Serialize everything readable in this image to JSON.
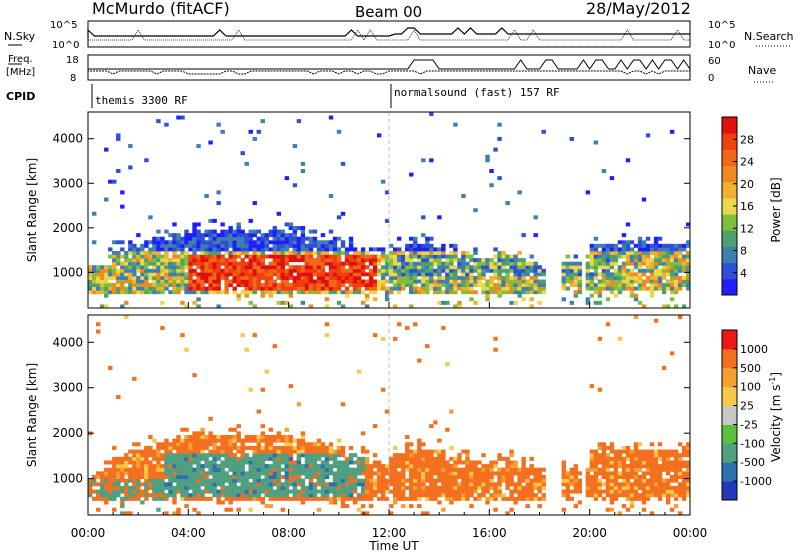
{
  "header": {
    "title": "McMurdo (fitACF)",
    "beam": "Beam 00",
    "date": "28/May/2012"
  },
  "noise_panel": {
    "left_label": "N.Sky",
    "right_label": "N.Search",
    "left_ticks": [
      "10^5",
      "10^0"
    ],
    "right_ticks": [
      "10^5",
      "10^0"
    ]
  },
  "freq_panel": {
    "left_label_1": "Freq.",
    "left_label_2": "[MHz]",
    "right_label": "Nave",
    "left_ticks": [
      "18",
      "8"
    ],
    "right_ticks": [
      "60",
      "0"
    ]
  },
  "cpid": {
    "label": "CPID",
    "segments": [
      {
        "text": "themis 3300 RF",
        "start_hour": 0
      },
      {
        "text": "normalsound (fast) 157 RF",
        "start_hour": 12
      }
    ]
  },
  "chart_data": [
    {
      "type": "heatmap",
      "name": "power",
      "ylabel": "Slant Range [km]",
      "xlabel": "Time UT",
      "xlim_hours": [
        0,
        24
      ],
      "ylim_km": [
        200,
        4600
      ],
      "y_ticks": [
        "1000",
        "2000",
        "3000",
        "4000"
      ],
      "x_ticks": [
        "00:00",
        "04:00",
        "08:00",
        "12:00",
        "16:00",
        "20:00",
        "00:00"
      ],
      "colorbar": {
        "label": "Power [dB]",
        "ticks": [
          "4",
          "8",
          "12",
          "16",
          "20",
          "24",
          "28"
        ],
        "colors": [
          "#1e1eff",
          "#2f4fd8",
          "#3f7fb0",
          "#4f9f70",
          "#7fbf3f",
          "#e8d84a",
          "#f0b030",
          "#f08a20",
          "#f06818",
          "#f04010",
          "#e01010"
        ]
      }
    },
    {
      "type": "heatmap",
      "name": "velocity",
      "ylabel": "Slant Range [km]",
      "xlabel": "Time UT",
      "xlim_hours": [
        0,
        24
      ],
      "ylim_km": [
        200,
        4600
      ],
      "y_ticks": [
        "1000",
        "2000",
        "3000",
        "4000"
      ],
      "x_ticks": [
        "00:00",
        "04:00",
        "08:00",
        "12:00",
        "16:00",
        "20:00",
        "00:00"
      ],
      "colorbar": {
        "label": "Velocity [m s",
        "label_sup": "-1",
        "label_close": "]",
        "ticks": [
          "1000",
          "500",
          "100",
          "25",
          "-25",
          "-100",
          "-500",
          "-1000"
        ],
        "colors": [
          "#2438b8",
          "#2e6fb0",
          "#4f9f80",
          "#5cc03c",
          "#c8c8c8",
          "#f8c848",
          "#f4a030",
          "#f47020",
          "#ee1818"
        ]
      }
    }
  ]
}
